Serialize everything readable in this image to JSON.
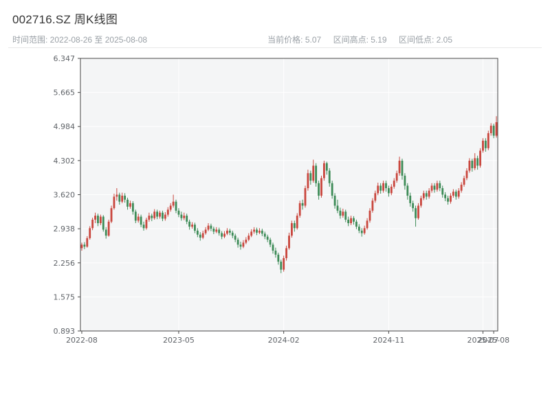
{
  "header": {
    "title": "002716.SZ 周K线图",
    "time_range": "时间范围: 2022-08-26 至 2025-08-08",
    "stats": {
      "current_price_label": "当前价格:",
      "current_price": "5.07",
      "range_high_label": "区间高点:",
      "range_high": "5.19",
      "range_low_label": "区间低点:",
      "range_low": "2.05"
    }
  },
  "chart_data": {
    "type": "candlestick",
    "title": "002716.SZ 周K线图",
    "frequency": "weekly",
    "date_start": "2022-08-26",
    "date_end": "2025-08-08",
    "xlabel": "",
    "ylabel": "",
    "ylim": [
      0.893,
      6.347
    ],
    "y_ticks": [
      "0.893",
      "1.575",
      "2.256",
      "2.938",
      "3.620",
      "4.302",
      "4.984",
      "5.665",
      "6.347"
    ],
    "x_ticks": [
      {
        "label": "2022-08",
        "index": 0
      },
      {
        "label": "2023-05",
        "index": 36
      },
      {
        "label": "2024-02",
        "index": 75
      },
      {
        "label": "2024-11",
        "index": 114
      },
      {
        "label": "2025-07",
        "index": 149
      },
      {
        "label": "2025-08",
        "index": 153
      }
    ],
    "legend": null,
    "grid": true,
    "colors": {
      "up": "#c9463d",
      "down": "#3d8b57",
      "plot_bg": "#f4f5f6",
      "grid": "#ffffff",
      "frame": "#444444",
      "tick_text": "#5f6368"
    },
    "candles": [
      [
        2.55,
        2.66,
        2.5,
        2.62
      ],
      [
        2.62,
        2.67,
        2.53,
        2.58
      ],
      [
        2.58,
        2.79,
        2.56,
        2.75
      ],
      [
        2.75,
        2.99,
        2.72,
        2.95
      ],
      [
        2.95,
        3.16,
        2.91,
        3.12
      ],
      [
        3.12,
        3.26,
        3.05,
        3.2
      ],
      [
        3.2,
        3.24,
        2.99,
        3.05
      ],
      [
        3.05,
        3.22,
        3.01,
        3.18
      ],
      [
        3.18,
        3.21,
        2.88,
        2.92
      ],
      [
        2.92,
        2.97,
        2.74,
        2.8
      ],
      [
        2.8,
        3.12,
        2.78,
        3.08
      ],
      [
        3.08,
        3.4,
        3.05,
        3.35
      ],
      [
        3.35,
        3.64,
        3.32,
        3.58
      ],
      [
        3.58,
        3.75,
        3.5,
        3.62
      ],
      [
        3.62,
        3.66,
        3.42,
        3.48
      ],
      [
        3.48,
        3.66,
        3.45,
        3.6
      ],
      [
        3.6,
        3.65,
        3.46,
        3.52
      ],
      [
        3.52,
        3.56,
        3.32,
        3.38
      ],
      [
        3.38,
        3.5,
        3.34,
        3.45
      ],
      [
        3.45,
        3.49,
        3.22,
        3.28
      ],
      [
        3.28,
        3.32,
        3.05,
        3.1
      ],
      [
        3.1,
        3.24,
        3.06,
        3.18
      ],
      [
        3.18,
        3.22,
        2.97,
        3.02
      ],
      [
        3.02,
        3.08,
        2.9,
        2.95
      ],
      [
        2.95,
        3.16,
        2.92,
        3.12
      ],
      [
        3.12,
        3.26,
        3.08,
        3.2
      ],
      [
        3.2,
        3.24,
        3.09,
        3.15
      ],
      [
        3.15,
        3.33,
        3.12,
        3.28
      ],
      [
        3.28,
        3.32,
        3.13,
        3.18
      ],
      [
        3.18,
        3.3,
        3.14,
        3.26
      ],
      [
        3.26,
        3.3,
        3.09,
        3.14
      ],
      [
        3.14,
        3.27,
        3.1,
        3.22
      ],
      [
        3.22,
        3.37,
        3.18,
        3.32
      ],
      [
        3.32,
        3.45,
        3.28,
        3.4
      ],
      [
        3.4,
        3.62,
        3.36,
        3.48
      ],
      [
        3.48,
        3.52,
        3.25,
        3.3
      ],
      [
        3.3,
        3.35,
        3.17,
        3.22
      ],
      [
        3.22,
        3.28,
        3.1,
        3.15
      ],
      [
        3.15,
        3.26,
        3.11,
        3.2
      ],
      [
        3.2,
        3.24,
        3.03,
        3.08
      ],
      [
        3.08,
        3.12,
        2.92,
        2.98
      ],
      [
        2.98,
        3.07,
        2.94,
        3.02
      ],
      [
        3.02,
        3.06,
        2.85,
        2.9
      ],
      [
        2.9,
        2.95,
        2.77,
        2.82
      ],
      [
        2.82,
        2.87,
        2.7,
        2.76
      ],
      [
        2.76,
        2.9,
        2.73,
        2.85
      ],
      [
        2.85,
        2.97,
        2.82,
        2.92
      ],
      [
        2.92,
        3.05,
        2.89,
        3.0
      ],
      [
        3.0,
        3.04,
        2.89,
        2.94
      ],
      [
        2.94,
        2.98,
        2.83,
        2.88
      ],
      [
        2.88,
        2.97,
        2.85,
        2.92
      ],
      [
        2.92,
        2.96,
        2.8,
        2.85
      ],
      [
        2.85,
        2.89,
        2.73,
        2.78
      ],
      [
        2.78,
        2.89,
        2.75,
        2.84
      ],
      [
        2.84,
        2.95,
        2.81,
        2.9
      ],
      [
        2.9,
        2.94,
        2.81,
        2.86
      ],
      [
        2.86,
        2.9,
        2.75,
        2.8
      ],
      [
        2.8,
        2.84,
        2.67,
        2.72
      ],
      [
        2.72,
        2.76,
        2.56,
        2.62
      ],
      [
        2.62,
        2.68,
        2.52,
        2.58
      ],
      [
        2.58,
        2.71,
        2.55,
        2.66
      ],
      [
        2.66,
        2.77,
        2.63,
        2.72
      ],
      [
        2.72,
        2.85,
        2.69,
        2.8
      ],
      [
        2.8,
        2.93,
        2.77,
        2.88
      ],
      [
        2.88,
        2.97,
        2.84,
        2.92
      ],
      [
        2.92,
        2.96,
        2.81,
        2.86
      ],
      [
        2.86,
        2.95,
        2.83,
        2.9
      ],
      [
        2.9,
        2.94,
        2.79,
        2.84
      ],
      [
        2.84,
        2.88,
        2.73,
        2.78
      ],
      [
        2.78,
        2.82,
        2.67,
        2.72
      ],
      [
        2.72,
        2.76,
        2.57,
        2.62
      ],
      [
        2.62,
        2.66,
        2.44,
        2.5
      ],
      [
        2.5,
        2.56,
        2.36,
        2.42
      ],
      [
        2.42,
        2.46,
        2.22,
        2.28
      ],
      [
        2.28,
        2.32,
        2.05,
        2.12
      ],
      [
        2.12,
        2.4,
        2.08,
        2.35
      ],
      [
        2.35,
        2.6,
        2.3,
        2.55
      ],
      [
        2.55,
        2.86,
        2.52,
        2.8
      ],
      [
        2.8,
        3.1,
        2.76,
        3.05
      ],
      [
        3.05,
        3.1,
        2.88,
        2.95
      ],
      [
        2.95,
        3.25,
        2.92,
        3.2
      ],
      [
        3.2,
        3.5,
        3.16,
        3.45
      ],
      [
        3.45,
        3.52,
        3.32,
        3.4
      ],
      [
        3.4,
        3.8,
        3.36,
        3.75
      ],
      [
        3.75,
        4.12,
        3.7,
        4.05
      ],
      [
        4.05,
        4.1,
        3.82,
        3.9
      ],
      [
        3.9,
        4.32,
        3.86,
        4.2
      ],
      [
        4.2,
        4.25,
        3.78,
        3.85
      ],
      [
        3.85,
        3.9,
        3.52,
        3.6
      ],
      [
        3.6,
        4.0,
        3.56,
        3.95
      ],
      [
        3.95,
        4.3,
        3.9,
        4.25
      ],
      [
        4.25,
        4.28,
        4.02,
        4.1
      ],
      [
        4.1,
        4.15,
        3.78,
        3.85
      ],
      [
        3.85,
        3.9,
        3.54,
        3.6
      ],
      [
        3.6,
        3.65,
        3.34,
        3.4
      ],
      [
        3.4,
        3.52,
        3.25,
        3.3
      ],
      [
        3.3,
        3.36,
        3.14,
        3.2
      ],
      [
        3.2,
        3.34,
        3.16,
        3.28
      ],
      [
        3.28,
        3.32,
        3.07,
        3.12
      ],
      [
        3.12,
        3.18,
        2.99,
        3.05
      ],
      [
        3.05,
        3.2,
        3.01,
        3.15
      ],
      [
        3.15,
        3.19,
        3.02,
        3.08
      ],
      [
        3.08,
        3.12,
        2.93,
        2.98
      ],
      [
        2.98,
        3.03,
        2.85,
        2.9
      ],
      [
        2.9,
        2.95,
        2.78,
        2.85
      ],
      [
        2.85,
        3.0,
        2.82,
        2.95
      ],
      [
        2.95,
        3.15,
        2.92,
        3.1
      ],
      [
        3.1,
        3.35,
        3.06,
        3.3
      ],
      [
        3.3,
        3.55,
        3.26,
        3.5
      ],
      [
        3.5,
        3.7,
        3.46,
        3.65
      ],
      [
        3.65,
        3.86,
        3.61,
        3.8
      ],
      [
        3.8,
        3.85,
        3.64,
        3.7
      ],
      [
        3.7,
        3.9,
        3.66,
        3.85
      ],
      [
        3.85,
        3.9,
        3.68,
        3.75
      ],
      [
        3.75,
        3.8,
        3.58,
        3.65
      ],
      [
        3.65,
        3.83,
        3.61,
        3.78
      ],
      [
        3.78,
        3.95,
        3.74,
        3.9
      ],
      [
        3.9,
        4.1,
        3.86,
        4.05
      ],
      [
        4.05,
        4.38,
        4.0,
        4.3
      ],
      [
        4.3,
        4.34,
        3.92,
        4.0
      ],
      [
        4.0,
        4.05,
        3.72,
        3.8
      ],
      [
        3.8,
        3.85,
        3.52,
        3.6
      ],
      [
        3.6,
        3.66,
        3.38,
        3.45
      ],
      [
        3.45,
        3.5,
        3.28,
        3.35
      ],
      [
        3.35,
        3.4,
        2.98,
        3.15
      ],
      [
        3.15,
        3.45,
        3.12,
        3.4
      ],
      [
        3.4,
        3.6,
        3.36,
        3.55
      ],
      [
        3.55,
        3.7,
        3.51,
        3.65
      ],
      [
        3.65,
        3.7,
        3.52,
        3.58
      ],
      [
        3.58,
        3.75,
        3.54,
        3.7
      ],
      [
        3.7,
        3.85,
        3.66,
        3.8
      ],
      [
        3.8,
        3.85,
        3.66,
        3.72
      ],
      [
        3.72,
        3.9,
        3.68,
        3.85
      ],
      [
        3.85,
        3.9,
        3.69,
        3.75
      ],
      [
        3.75,
        3.8,
        3.56,
        3.62
      ],
      [
        3.62,
        3.67,
        3.49,
        3.55
      ],
      [
        3.55,
        3.6,
        3.42,
        3.48
      ],
      [
        3.48,
        3.65,
        3.44,
        3.6
      ],
      [
        3.6,
        3.73,
        3.56,
        3.68
      ],
      [
        3.68,
        3.72,
        3.52,
        3.58
      ],
      [
        3.58,
        3.75,
        3.54,
        3.7
      ],
      [
        3.7,
        3.87,
        3.66,
        3.82
      ],
      [
        3.82,
        4.0,
        3.78,
        3.95
      ],
      [
        3.95,
        4.15,
        3.91,
        4.1
      ],
      [
        4.1,
        4.35,
        4.06,
        4.3
      ],
      [
        4.3,
        4.34,
        4.08,
        4.15
      ],
      [
        4.15,
        4.45,
        4.11,
        4.35
      ],
      [
        4.35,
        4.4,
        4.12,
        4.2
      ],
      [
        4.2,
        4.55,
        4.16,
        4.5
      ],
      [
        4.5,
        4.75,
        4.46,
        4.7
      ],
      [
        4.7,
        4.75,
        4.48,
        4.55
      ],
      [
        4.55,
        4.9,
        4.51,
        4.85
      ],
      [
        4.85,
        5.05,
        4.8,
        5.0
      ],
      [
        5.0,
        5.04,
        4.75,
        4.8
      ],
      [
        4.8,
        5.19,
        4.76,
        5.07
      ]
    ]
  }
}
